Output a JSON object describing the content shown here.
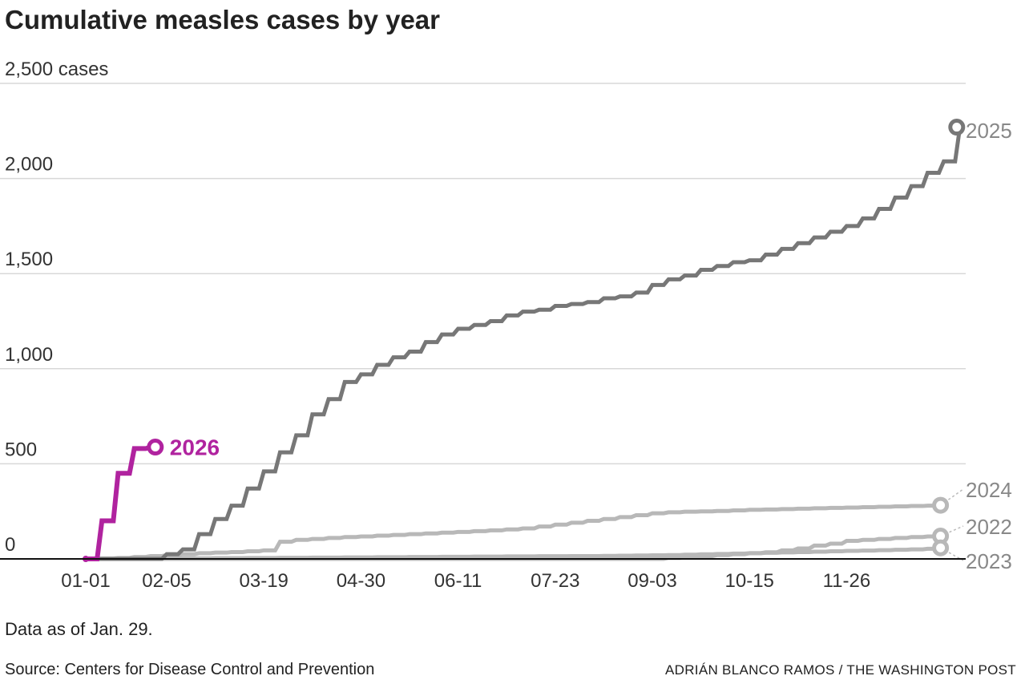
{
  "chart_data": {
    "type": "line",
    "title": "Cumulative measles cases by year",
    "note": "Data as of Jan. 29.",
    "source": "Source: Centers for Disease Control and Prevention",
    "credit": "ADRIÁN BLANCO RAMOS / THE WASHINGTON POST",
    "ylabel_unit": "cases",
    "ylim": [
      0,
      2500
    ],
    "yticks": [
      0,
      500,
      1000,
      1500,
      2000,
      2500
    ],
    "ytick_labels": [
      "0",
      "500",
      "1,000",
      "1,500",
      "2,000",
      "2,500 cases"
    ],
    "x_unit": "week of year",
    "xticks_week": [
      0,
      5,
      11,
      17,
      23,
      29,
      35,
      41,
      47
    ],
    "xtick_labels": [
      "01-01",
      "02-05",
      "03-19",
      "04-30",
      "06-11",
      "07-23",
      "09-03",
      "10-15",
      "11-26"
    ],
    "grid": true,
    "series": [
      {
        "name": "2022",
        "color": "#b8b8b8",
        "values": [
          0,
          0,
          0,
          0,
          0,
          0,
          0,
          0,
          0,
          0,
          0,
          0,
          0,
          0,
          0,
          0,
          0,
          0,
          0,
          0,
          0,
          0,
          0,
          0,
          0,
          0,
          0,
          0,
          0,
          0,
          0,
          0,
          0,
          0,
          0,
          0,
          5,
          10,
          15,
          20,
          25,
          30,
          35,
          45,
          55,
          70,
          80,
          95,
          100,
          105,
          110,
          115,
          118,
          120
        ]
      },
      {
        "name": "2023",
        "color": "#b8b8b8",
        "values": [
          0,
          0,
          1,
          1,
          2,
          2,
          3,
          3,
          4,
          4,
          5,
          5,
          6,
          6,
          7,
          7,
          8,
          8,
          9,
          9,
          10,
          10,
          11,
          11,
          12,
          12,
          13,
          13,
          14,
          14,
          15,
          15,
          16,
          17,
          18,
          19,
          20,
          22,
          24,
          26,
          28,
          30,
          32,
          34,
          36,
          38,
          40,
          42,
          44,
          46,
          48,
          50,
          53,
          58
        ]
      },
      {
        "name": "2024",
        "color": "#b8b8b8",
        "values": [
          0,
          2,
          5,
          10,
          15,
          20,
          25,
          30,
          33,
          36,
          40,
          45,
          90,
          100,
          105,
          110,
          115,
          118,
          122,
          126,
          130,
          134,
          138,
          142,
          146,
          150,
          155,
          160,
          170,
          180,
          190,
          200,
          210,
          220,
          230,
          240,
          245,
          248,
          250,
          252,
          255,
          258,
          260,
          262,
          264,
          266,
          268,
          270,
          272,
          274,
          276,
          278,
          280,
          282
        ]
      },
      {
        "name": "2025",
        "color": "#777777",
        "values": [
          0,
          0,
          0,
          0,
          0,
          25,
          50,
          130,
          210,
          280,
          370,
          460,
          560,
          650,
          760,
          840,
          930,
          970,
          1020,
          1060,
          1090,
          1140,
          1180,
          1210,
          1230,
          1250,
          1280,
          1300,
          1310,
          1330,
          1340,
          1350,
          1370,
          1380,
          1400,
          1440,
          1470,
          1490,
          1520,
          1540,
          1560,
          1570,
          1600,
          1630,
          1660,
          1690,
          1720,
          1750,
          1790,
          1840,
          1900,
          1960,
          2030,
          2090,
          2270
        ]
      },
      {
        "name": "2026",
        "color": "#b0239f",
        "values": [
          0,
          200,
          450,
          580,
          588
        ]
      }
    ]
  }
}
